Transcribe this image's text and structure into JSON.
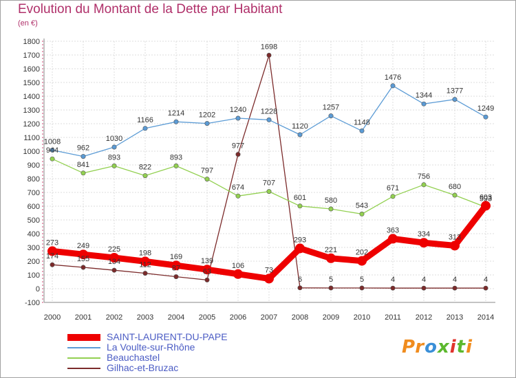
{
  "title": "Evolution du Montant de la Dette par Habitant",
  "subtitle": "(en €)",
  "logo": {
    "text": "Proxiti",
    "letter_colors": [
      "#f08c1e",
      "#f08c1e",
      "#3a8fd8",
      "#5cb82e",
      "#e0332d",
      "#5cb82e",
      "#f08c1e"
    ]
  },
  "chart_data": {
    "type": "line",
    "x": [
      "2000",
      "2001",
      "2002",
      "2003",
      "2004",
      "2005",
      "2006",
      "2007",
      "2008",
      "2009",
      "2010",
      "2011",
      "2012",
      "2013",
      "2014"
    ],
    "ylim": [
      -100,
      1800
    ],
    "y_ticks": [
      -100,
      0,
      100,
      200,
      300,
      400,
      500,
      600,
      700,
      800,
      900,
      1000,
      1100,
      1200,
      1300,
      1400,
      1500,
      1600,
      1700,
      1800
    ],
    "grid": true,
    "legend_position": "bottom-left",
    "series": [
      {
        "name": "SAINT-LAURENT-DU-PAPE",
        "color": "#ee0000",
        "values": [
          273,
          249,
          225,
          198,
          169,
          139,
          106,
          73,
          293,
          221,
          202,
          363,
          334,
          313,
          603
        ]
      },
      {
        "name": "La Voulte-sur-Rhône",
        "color": "#5b9bd5",
        "values": [
          1008,
          962,
          1030,
          1166,
          1214,
          1202,
          1240,
          1228,
          1120,
          1257,
          1148,
          1476,
          1344,
          1377,
          1249
        ]
      },
      {
        "name": "Beauchastel",
        "color": "#92d050",
        "values": [
          944,
          841,
          893,
          822,
          893,
          797,
          674,
          707,
          601,
          580,
          543,
          671,
          756,
          680,
          593
        ]
      },
      {
        "name": "Gilhac-et-Bruzac",
        "color": "#7b2a2a",
        "values": [
          174,
          155,
          134,
          112,
          87,
          63,
          977,
          1698,
          6,
          5,
          5,
          4,
          4,
          4,
          4
        ]
      }
    ]
  }
}
